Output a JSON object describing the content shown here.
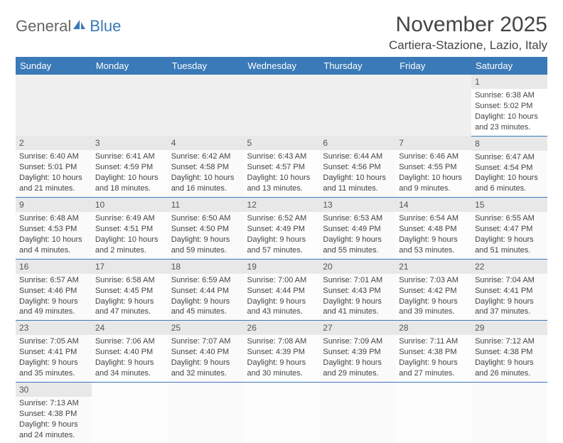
{
  "logo": {
    "part1": "General",
    "part2": "Blue"
  },
  "title": "November 2025",
  "location": "Cartiera-Stazione, Lazio, Italy",
  "colors": {
    "header_bg": "#3a7ab8",
    "header_text": "#ffffff",
    "border": "#3a7ab8",
    "text": "#444444"
  },
  "dayHeaders": [
    "Sunday",
    "Monday",
    "Tuesday",
    "Wednesday",
    "Thursday",
    "Friday",
    "Saturday"
  ],
  "weeks": [
    [
      null,
      null,
      null,
      null,
      null,
      null,
      {
        "n": "1",
        "sunrise": "Sunrise: 6:38 AM",
        "sunset": "Sunset: 5:02 PM",
        "daylight": "Daylight: 10 hours and 23 minutes."
      }
    ],
    [
      {
        "n": "2",
        "sunrise": "Sunrise: 6:40 AM",
        "sunset": "Sunset: 5:01 PM",
        "daylight": "Daylight: 10 hours and 21 minutes."
      },
      {
        "n": "3",
        "sunrise": "Sunrise: 6:41 AM",
        "sunset": "Sunset: 4:59 PM",
        "daylight": "Daylight: 10 hours and 18 minutes."
      },
      {
        "n": "4",
        "sunrise": "Sunrise: 6:42 AM",
        "sunset": "Sunset: 4:58 PM",
        "daylight": "Daylight: 10 hours and 16 minutes."
      },
      {
        "n": "5",
        "sunrise": "Sunrise: 6:43 AM",
        "sunset": "Sunset: 4:57 PM",
        "daylight": "Daylight: 10 hours and 13 minutes."
      },
      {
        "n": "6",
        "sunrise": "Sunrise: 6:44 AM",
        "sunset": "Sunset: 4:56 PM",
        "daylight": "Daylight: 10 hours and 11 minutes."
      },
      {
        "n": "7",
        "sunrise": "Sunrise: 6:46 AM",
        "sunset": "Sunset: 4:55 PM",
        "daylight": "Daylight: 10 hours and 9 minutes."
      },
      {
        "n": "8",
        "sunrise": "Sunrise: 6:47 AM",
        "sunset": "Sunset: 4:54 PM",
        "daylight": "Daylight: 10 hours and 6 minutes."
      }
    ],
    [
      {
        "n": "9",
        "sunrise": "Sunrise: 6:48 AM",
        "sunset": "Sunset: 4:53 PM",
        "daylight": "Daylight: 10 hours and 4 minutes."
      },
      {
        "n": "10",
        "sunrise": "Sunrise: 6:49 AM",
        "sunset": "Sunset: 4:51 PM",
        "daylight": "Daylight: 10 hours and 2 minutes."
      },
      {
        "n": "11",
        "sunrise": "Sunrise: 6:50 AM",
        "sunset": "Sunset: 4:50 PM",
        "daylight": "Daylight: 9 hours and 59 minutes."
      },
      {
        "n": "12",
        "sunrise": "Sunrise: 6:52 AM",
        "sunset": "Sunset: 4:49 PM",
        "daylight": "Daylight: 9 hours and 57 minutes."
      },
      {
        "n": "13",
        "sunrise": "Sunrise: 6:53 AM",
        "sunset": "Sunset: 4:49 PM",
        "daylight": "Daylight: 9 hours and 55 minutes."
      },
      {
        "n": "14",
        "sunrise": "Sunrise: 6:54 AM",
        "sunset": "Sunset: 4:48 PM",
        "daylight": "Daylight: 9 hours and 53 minutes."
      },
      {
        "n": "15",
        "sunrise": "Sunrise: 6:55 AM",
        "sunset": "Sunset: 4:47 PM",
        "daylight": "Daylight: 9 hours and 51 minutes."
      }
    ],
    [
      {
        "n": "16",
        "sunrise": "Sunrise: 6:57 AM",
        "sunset": "Sunset: 4:46 PM",
        "daylight": "Daylight: 9 hours and 49 minutes."
      },
      {
        "n": "17",
        "sunrise": "Sunrise: 6:58 AM",
        "sunset": "Sunset: 4:45 PM",
        "daylight": "Daylight: 9 hours and 47 minutes."
      },
      {
        "n": "18",
        "sunrise": "Sunrise: 6:59 AM",
        "sunset": "Sunset: 4:44 PM",
        "daylight": "Daylight: 9 hours and 45 minutes."
      },
      {
        "n": "19",
        "sunrise": "Sunrise: 7:00 AM",
        "sunset": "Sunset: 4:44 PM",
        "daylight": "Daylight: 9 hours and 43 minutes."
      },
      {
        "n": "20",
        "sunrise": "Sunrise: 7:01 AM",
        "sunset": "Sunset: 4:43 PM",
        "daylight": "Daylight: 9 hours and 41 minutes."
      },
      {
        "n": "21",
        "sunrise": "Sunrise: 7:03 AM",
        "sunset": "Sunset: 4:42 PM",
        "daylight": "Daylight: 9 hours and 39 minutes."
      },
      {
        "n": "22",
        "sunrise": "Sunrise: 7:04 AM",
        "sunset": "Sunset: 4:41 PM",
        "daylight": "Daylight: 9 hours and 37 minutes."
      }
    ],
    [
      {
        "n": "23",
        "sunrise": "Sunrise: 7:05 AM",
        "sunset": "Sunset: 4:41 PM",
        "daylight": "Daylight: 9 hours and 35 minutes."
      },
      {
        "n": "24",
        "sunrise": "Sunrise: 7:06 AM",
        "sunset": "Sunset: 4:40 PM",
        "daylight": "Daylight: 9 hours and 34 minutes."
      },
      {
        "n": "25",
        "sunrise": "Sunrise: 7:07 AM",
        "sunset": "Sunset: 4:40 PM",
        "daylight": "Daylight: 9 hours and 32 minutes."
      },
      {
        "n": "26",
        "sunrise": "Sunrise: 7:08 AM",
        "sunset": "Sunset: 4:39 PM",
        "daylight": "Daylight: 9 hours and 30 minutes."
      },
      {
        "n": "27",
        "sunrise": "Sunrise: 7:09 AM",
        "sunset": "Sunset: 4:39 PM",
        "daylight": "Daylight: 9 hours and 29 minutes."
      },
      {
        "n": "28",
        "sunrise": "Sunrise: 7:11 AM",
        "sunset": "Sunset: 4:38 PM",
        "daylight": "Daylight: 9 hours and 27 minutes."
      },
      {
        "n": "29",
        "sunrise": "Sunrise: 7:12 AM",
        "sunset": "Sunset: 4:38 PM",
        "daylight": "Daylight: 9 hours and 26 minutes."
      }
    ],
    [
      {
        "n": "30",
        "sunrise": "Sunrise: 7:13 AM",
        "sunset": "Sunset: 4:38 PM",
        "daylight": "Daylight: 9 hours and 24 minutes."
      },
      null,
      null,
      null,
      null,
      null,
      null
    ]
  ]
}
